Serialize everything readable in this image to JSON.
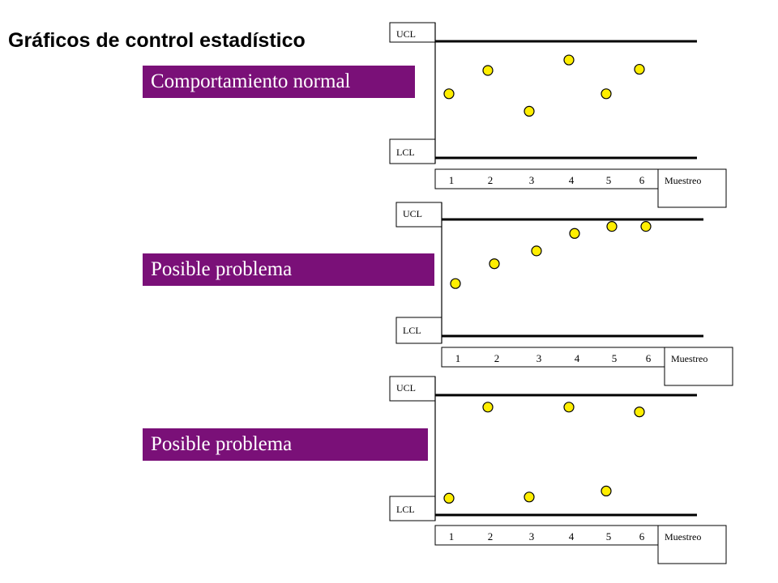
{
  "title": "Gráficos de control estadístico",
  "colors": {
    "banner": "#7a1078",
    "banner_text": "#ffffff",
    "point_fill": "#ffee00",
    "point_stroke": "#000000",
    "line": "#000000"
  },
  "charts": [
    {
      "banner": "Comportamiento normal",
      "ucl_label": "UCL",
      "lcl_label": "LCL",
      "axis_label": "Muestreo",
      "ticks": [
        "1",
        "2",
        "3",
        "4",
        "5",
        "6"
      ],
      "points": [
        {
          "x": 1,
          "level": 0.55
        },
        {
          "x": 2,
          "level": 0.75
        },
        {
          "x": 3,
          "level": 0.4
        },
        {
          "x": 4,
          "level": 0.84
        },
        {
          "x": 5,
          "level": 0.55
        },
        {
          "x": 6,
          "level": 0.76
        }
      ]
    },
    {
      "banner": "Posible problema",
      "ucl_label": "UCL",
      "lcl_label": "LCL",
      "axis_label": "Muestreo",
      "ticks": [
        "1",
        "2",
        "3",
        "4",
        "5",
        "6"
      ],
      "points": [
        {
          "x": 1,
          "level": 0.45
        },
        {
          "x": 2,
          "level": 0.62
        },
        {
          "x": 3,
          "level": 0.73
        },
        {
          "x": 4,
          "level": 0.88
        },
        {
          "x": 5,
          "level": 0.94
        },
        {
          "x": 6,
          "level": 0.94
        }
      ]
    },
    {
      "banner": "Posible problema",
      "ucl_label": "UCL",
      "lcl_label": "LCL",
      "axis_label": "Muestreo",
      "ticks": [
        "1",
        "2",
        "3",
        "4",
        "5",
        "6"
      ],
      "points": [
        {
          "x": 1,
          "level": 0.14
        },
        {
          "x": 2,
          "level": 0.9
        },
        {
          "x": 3,
          "level": 0.15
        },
        {
          "x": 4,
          "level": 0.9
        },
        {
          "x": 5,
          "level": 0.2
        },
        {
          "x": 6,
          "level": 0.86
        }
      ]
    }
  ]
}
